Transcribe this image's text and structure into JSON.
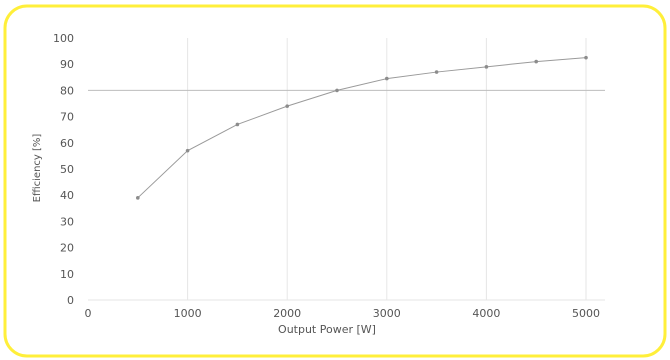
{
  "chart_data": {
    "type": "line",
    "xlabel": "Output Power [W]",
    "ylabel": "Efficiency [%]",
    "xlim": [
      0,
      5200
    ],
    "ylim": [
      0,
      100
    ],
    "x_ticks": [
      0,
      1000,
      2000,
      3000,
      4000,
      5000
    ],
    "y_ticks": [
      0,
      10,
      20,
      30,
      40,
      50,
      60,
      70,
      80,
      90,
      100
    ],
    "reference_line_y": 80,
    "grid": {
      "vertical": true,
      "horizontal": false
    },
    "series": [
      {
        "x": [
          500,
          1000,
          1500,
          2000,
          2500,
          3000,
          3500,
          4000,
          4500,
          5000
        ],
        "y": [
          39,
          57,
          67,
          74,
          80,
          84.5,
          87,
          89,
          91,
          92.5
        ]
      }
    ],
    "colors": {
      "frame": "#ffef3a",
      "line": "#9a9a9a",
      "marker": "#8c8c8c",
      "grid": "#e6e6e6",
      "reference": "#bdbdbd",
      "text": "#555555"
    }
  }
}
